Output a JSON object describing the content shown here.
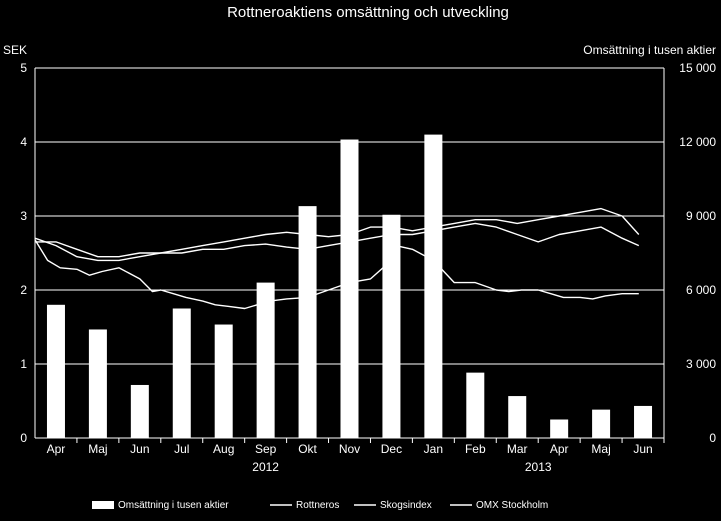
{
  "chart_data": {
    "type": "bar+line",
    "title": "Rottneroaktiens omsättning och utveckling",
    "left_axis": {
      "label": "SEK",
      "range": [
        0,
        5
      ],
      "ticks": [
        "0",
        "1",
        "2",
        "3",
        "4",
        "5"
      ]
    },
    "right_axis": {
      "label": "Omsättning i tusen aktier",
      "range": [
        0,
        15000
      ],
      "ticks": [
        "0",
        "3 000",
        "6 000",
        "9 000",
        "12 000",
        "15 000"
      ]
    },
    "categories": [
      "Apr",
      "Maj",
      "Jun",
      "Jul",
      "Aug",
      "Sep",
      "Okt",
      "Nov",
      "Dec",
      "Jan",
      "Feb",
      "Mar",
      "Apr",
      "Maj",
      "Jun"
    ],
    "years": [
      {
        "label": "2012",
        "under_category": 5
      },
      {
        "label": "2013",
        "under_category": 11.5
      }
    ],
    "bars": {
      "name": "Omsättning i tusen aktier",
      "values": [
        5400,
        4400,
        2150,
        5250,
        4600,
        6300,
        9400,
        12100,
        9050,
        12300,
        2650,
        1700,
        750,
        1150,
        1300
      ]
    },
    "lines": [
      {
        "name": "Rottneros",
        "x": [
          0,
          0.3,
          0.6,
          1,
          1.3,
          1.6,
          2,
          2.5,
          2.8,
          3,
          3.3,
          3.6,
          4,
          4.3,
          4.6,
          5,
          5.3,
          5.6,
          6,
          6.5,
          7,
          7.5,
          8,
          8.3,
          8.6,
          9,
          9.5,
          10,
          10.5,
          11,
          11.3,
          11.6,
          12,
          12.3,
          12.6,
          13,
          13.3,
          13.6,
          14,
          14.4
        ],
        "y": [
          2.68,
          2.4,
          2.3,
          2.28,
          2.2,
          2.25,
          2.3,
          2.15,
          1.98,
          2.0,
          1.95,
          1.9,
          1.85,
          1.8,
          1.78,
          1.75,
          1.8,
          1.85,
          1.88,
          1.9,
          2.0,
          2.1,
          2.15,
          2.3,
          2.6,
          2.55,
          2.4,
          2.1,
          2.1,
          2.0,
          1.98,
          2.0,
          2.0,
          1.95,
          1.9,
          1.9,
          1.88,
          1.92,
          1.95,
          1.95
        ]
      },
      {
        "name": "Skogsindex",
        "x": [
          0,
          0.5,
          1,
          1.5,
          2,
          2.5,
          3,
          3.5,
          4,
          4.5,
          5,
          5.5,
          6,
          6.5,
          7,
          7.5,
          8,
          8.5,
          9,
          9.5,
          10,
          10.5,
          11,
          11.5,
          12,
          12.5,
          13,
          13.5,
          14,
          14.4
        ],
        "y": [
          2.65,
          2.65,
          2.55,
          2.45,
          2.45,
          2.5,
          2.5,
          2.55,
          2.6,
          2.65,
          2.7,
          2.75,
          2.78,
          2.75,
          2.72,
          2.75,
          2.85,
          2.85,
          2.8,
          2.85,
          2.9,
          2.95,
          2.95,
          2.9,
          2.95,
          3.0,
          3.05,
          3.1,
          3.0,
          2.75
        ]
      },
      {
        "name": "OMX Stockholm",
        "x": [
          0,
          0.5,
          1,
          1.5,
          2,
          2.5,
          3,
          3.5,
          4,
          4.5,
          5,
          5.5,
          6,
          6.5,
          7,
          7.5,
          8,
          8.5,
          9,
          9.5,
          10,
          10.5,
          11,
          11.5,
          12,
          12.5,
          13,
          13.5,
          14,
          14.4
        ],
        "y": [
          2.7,
          2.6,
          2.45,
          2.4,
          2.4,
          2.45,
          2.5,
          2.5,
          2.55,
          2.55,
          2.6,
          2.62,
          2.58,
          2.55,
          2.6,
          2.65,
          2.7,
          2.75,
          2.75,
          2.8,
          2.85,
          2.9,
          2.85,
          2.75,
          2.65,
          2.75,
          2.8,
          2.85,
          2.7,
          2.6
        ]
      }
    ],
    "legend": {
      "placement": "bottom",
      "items": [
        {
          "label": "Omsättning i tusen aktier",
          "symbol": "bar"
        },
        {
          "label": "Rottneros",
          "symbol": "line"
        },
        {
          "label": "Skogsindex",
          "symbol": "line"
        },
        {
          "label": "OMX Stockholm",
          "symbol": "line"
        }
      ]
    },
    "grid": "horizontal",
    "colors": {
      "background": "#000000",
      "foreground": "#ffffff"
    }
  }
}
